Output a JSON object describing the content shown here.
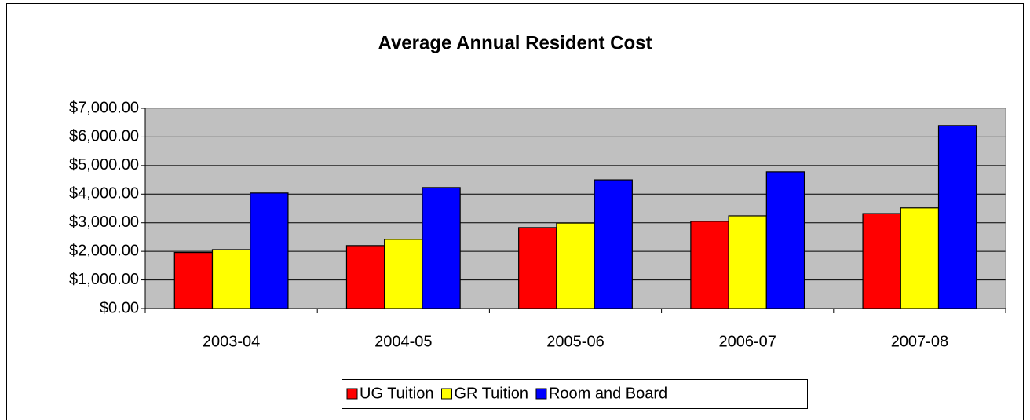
{
  "chart_data": {
    "type": "bar",
    "title": "Average Annual Resident Cost",
    "categories": [
      "2003-04",
      "2004-05",
      "2005-06",
      "2006-07",
      "2007-08"
    ],
    "series": [
      {
        "name": "UG Tuition",
        "color": "#ff0000",
        "values": [
          1960,
          2200,
          2830,
          3050,
          3320
        ]
      },
      {
        "name": "GR Tuition",
        "color": "#ffff00",
        "values": [
          2060,
          2420,
          2990,
          3240,
          3520
        ]
      },
      {
        "name": "Room and Board",
        "color": "#0000ff",
        "values": [
          4040,
          4230,
          4500,
          4780,
          6400
        ]
      }
    ],
    "ylim": [
      0,
      7000
    ],
    "yticks": [
      {
        "value": 0,
        "label": "$0.00"
      },
      {
        "value": 1000,
        "label": "$1,000.00"
      },
      {
        "value": 2000,
        "label": "$2,000.00"
      },
      {
        "value": 3000,
        "label": "$3,000.00"
      },
      {
        "value": 4000,
        "label": "$4,000.00"
      },
      {
        "value": 5000,
        "label": "$5,000.00"
      },
      {
        "value": 6000,
        "label": "$6,000.00"
      },
      {
        "value": 7000,
        "label": "$7,000.00"
      }
    ],
    "grid": true,
    "legend": "bottom"
  }
}
